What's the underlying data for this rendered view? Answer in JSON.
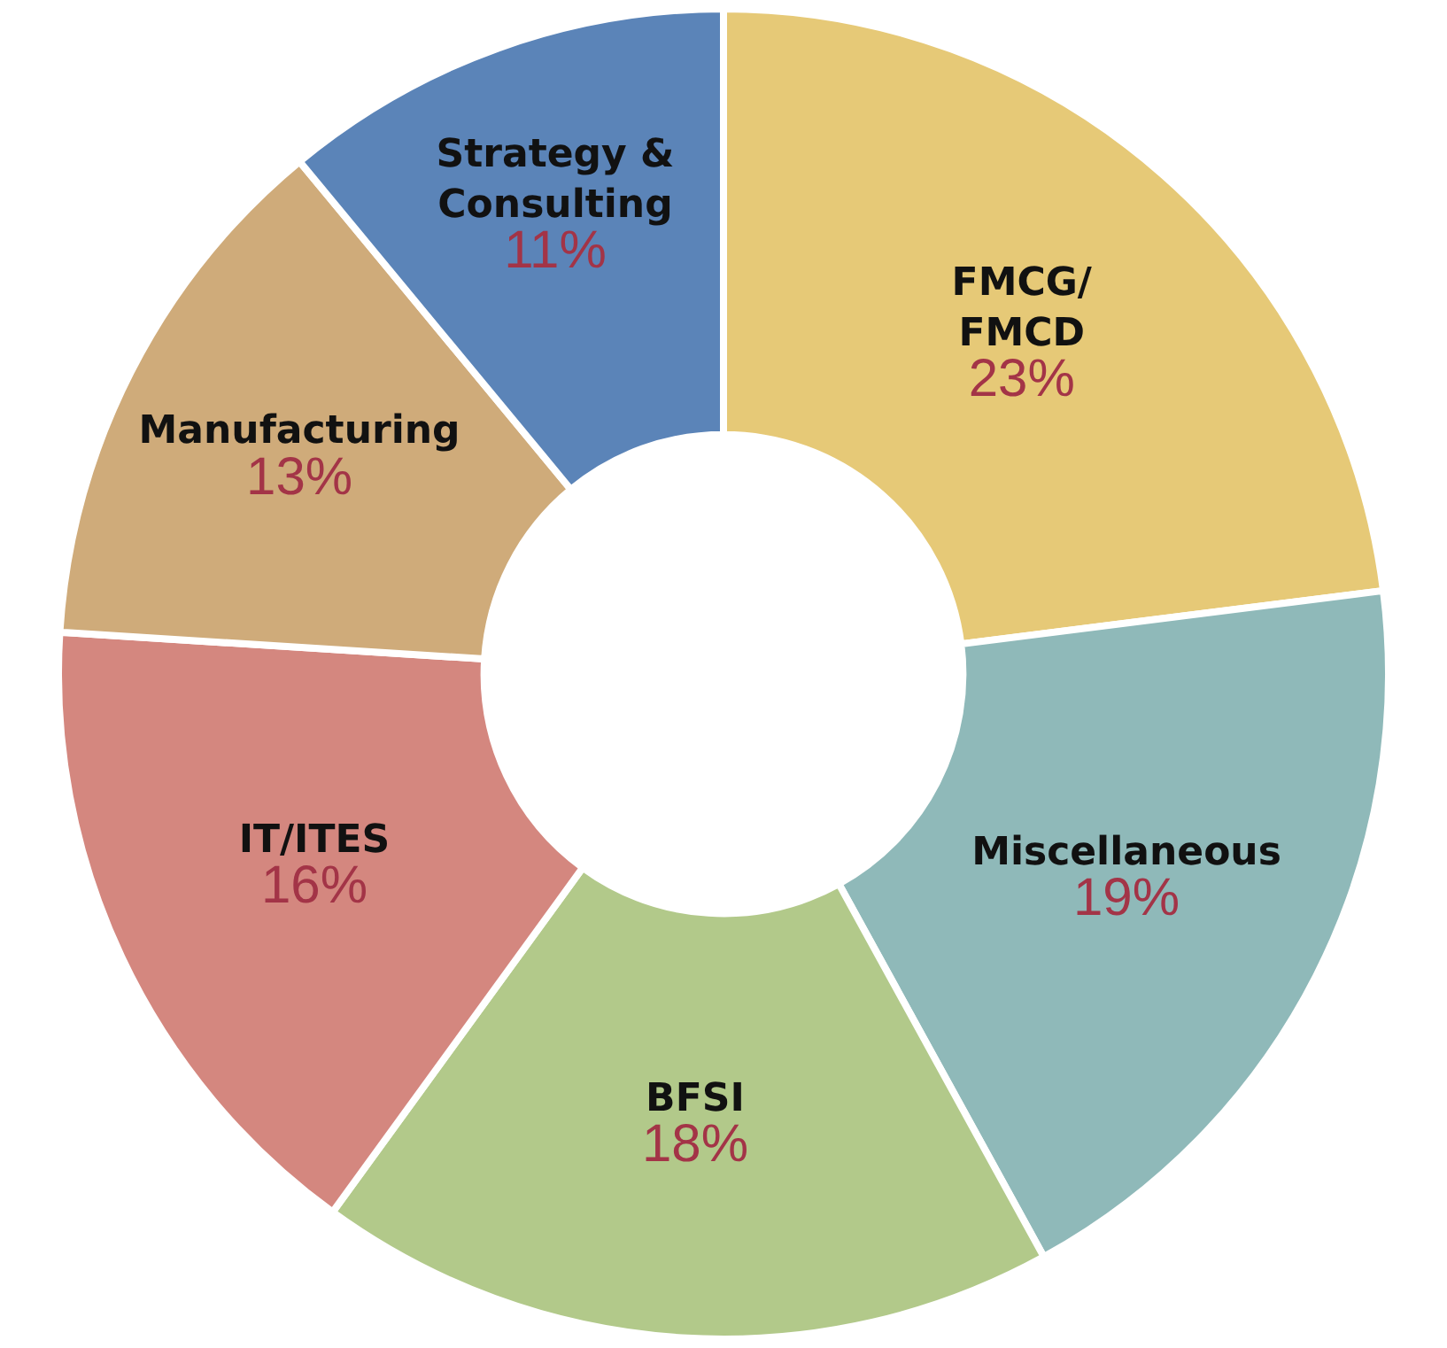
{
  "chart_data": {
    "type": "donut",
    "categories": [
      "FMCG/\nFMCD",
      "Miscellaneous",
      "BFSI",
      "IT/ITES",
      "Manufacturing",
      "Strategy &\nConsulting"
    ],
    "values": [
      23,
      19,
      18,
      16,
      13,
      11
    ],
    "value_labels": [
      "23%",
      "19%",
      "18%",
      "16%",
      "13%",
      "11%"
    ],
    "colors": [
      "#e6c977",
      "#8fb9b9",
      "#b2c98a",
      "#d4877f",
      "#cfab7a",
      "#5b84b8"
    ],
    "legend": false
  }
}
